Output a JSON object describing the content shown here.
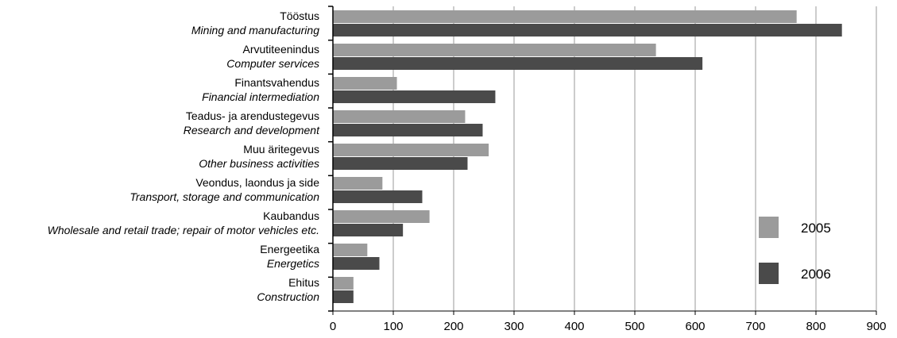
{
  "chart_data": {
    "type": "bar",
    "orientation": "horizontal",
    "categories": [
      {
        "et": "Tööstus",
        "en": "Mining and manufacturing"
      },
      {
        "et": "Arvutiteenindus",
        "en": "Computer services"
      },
      {
        "et": "Finantsvahendus",
        "en": "Financial intermediation"
      },
      {
        "et": "Teadus- ja arendustegevus",
        "en": "Research and development"
      },
      {
        "et": "Muu äritegevus",
        "en": "Other business activities"
      },
      {
        "et": "Veondus, laondus ja side",
        "en": "Transport, storage and communication"
      },
      {
        "et": "Kaubandus",
        "en": "Wholesale and retail trade; repair of motor vehicles etc."
      },
      {
        "et": "Energeetika",
        "en": "Energetics"
      },
      {
        "et": "Ehitus",
        "en": "Construction"
      }
    ],
    "series": [
      {
        "name": "2005",
        "color": "#9b9b9b",
        "values": [
          768,
          535,
          106,
          219,
          258,
          82,
          160,
          57,
          34
        ]
      },
      {
        "name": "2006",
        "color": "#4a4a4a",
        "values": [
          843,
          612,
          269,
          248,
          223,
          148,
          116,
          77,
          34
        ]
      }
    ],
    "xlim": [
      0,
      900
    ],
    "xticks": [
      "0",
      "100",
      "200",
      "300",
      "400",
      "500",
      "600",
      "700",
      "800",
      "900"
    ],
    "grid": true,
    "legend_position": "right",
    "title": "",
    "xlabel": "",
    "ylabel": ""
  }
}
